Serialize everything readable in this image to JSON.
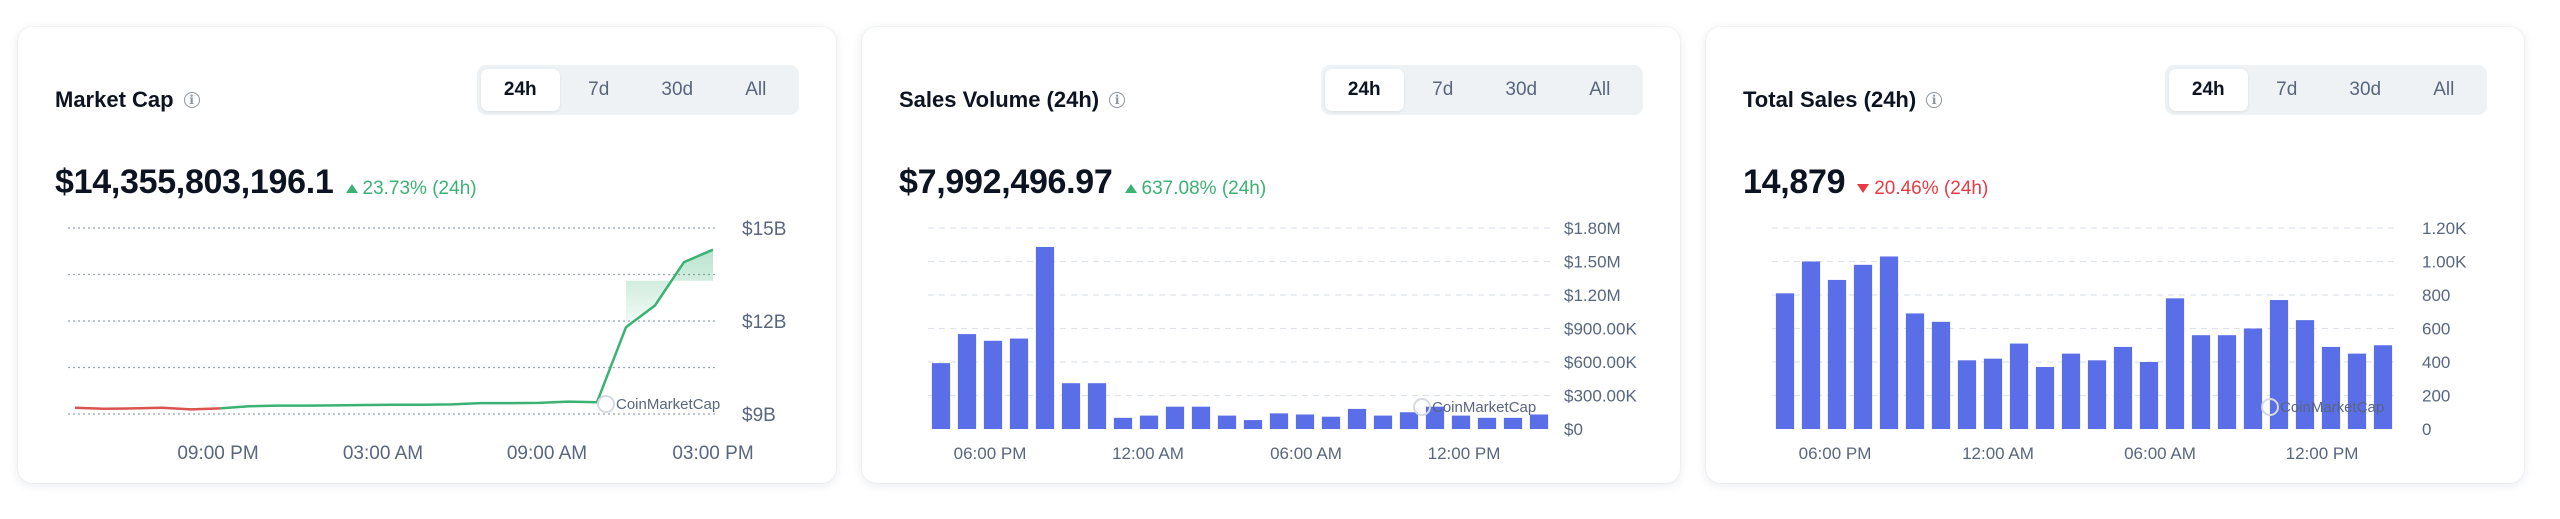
{
  "cards": [
    {
      "title": "Market Cap",
      "tabs": [
        "24h",
        "7d",
        "30d",
        "All"
      ],
      "active_tab": "24h",
      "value": "$14,355,803,196.1",
      "change": "23.73% (24h)",
      "change_dir": "up",
      "watermark": "CoinMarketCap"
    },
    {
      "title": "Sales Volume (24h)",
      "tabs": [
        "24h",
        "7d",
        "30d",
        "All"
      ],
      "active_tab": "24h",
      "value": "$7,992,496.97",
      "change": "637.08% (24h)",
      "change_dir": "up",
      "watermark": "CoinMarketCap"
    },
    {
      "title": "Total Sales (24h)",
      "tabs": [
        "24h",
        "7d",
        "30d",
        "All"
      ],
      "active_tab": "24h",
      "value": "14,879",
      "change": "20.46% (24h)",
      "change_dir": "down",
      "watermark": "CoinMarketCap"
    }
  ],
  "colors": {
    "up": "#3bb273",
    "down": "#ea3943",
    "bar": "#5a6ee8",
    "line_old": "#d9534f",
    "line_new": "#3bb273"
  },
  "chart_data": [
    {
      "type": "line",
      "x_ticks": [
        "09:00 PM",
        "03:00 AM",
        "09:00 AM",
        "03:00 PM"
      ],
      "y_ticks": [
        "$9B",
        "$12B",
        "$15B"
      ],
      "ylim": [
        9,
        15
      ],
      "grid": "dashed",
      "values": [
        9.2,
        9.17,
        9.18,
        9.2,
        9.15,
        9.18,
        9.25,
        9.27,
        9.27,
        9.28,
        9.29,
        9.3,
        9.3,
        9.31,
        9.35,
        9.35,
        9.36,
        9.4,
        9.38,
        11.8,
        12.5,
        13.9,
        14.3
      ],
      "series": [
        {
          "name": "",
          "color_change_index": 5
        }
      ]
    },
    {
      "type": "bar",
      "x_ticks": [
        "06:00 PM",
        "12:00 AM",
        "06:00 AM",
        "12:00 PM"
      ],
      "y_ticks": [
        "$0",
        "$300.00K",
        "$600.00K",
        "$900.00K",
        "$1.20M",
        "$1.50M",
        "$1.80M"
      ],
      "ylim": [
        0,
        1800000
      ],
      "values": [
        590000,
        850000,
        790000,
        810000,
        1630000,
        410000,
        410000,
        100000,
        120000,
        200000,
        200000,
        120000,
        80000,
        140000,
        130000,
        110000,
        180000,
        120000,
        150000,
        200000,
        120000,
        100000,
        100000,
        130000
      ]
    },
    {
      "type": "bar",
      "x_ticks": [
        "06:00 PM",
        "12:00 AM",
        "06:00 AM",
        "12:00 PM"
      ],
      "y_ticks": [
        "0",
        "200",
        "400",
        "600",
        "800",
        "1.00K",
        "1.20K"
      ],
      "ylim": [
        0,
        1200
      ],
      "values": [
        810,
        1000,
        890,
        980,
        1030,
        690,
        640,
        410,
        420,
        510,
        370,
        450,
        410,
        490,
        400,
        780,
        560,
        560,
        600,
        770,
        650,
        490,
        450,
        500
      ]
    }
  ]
}
